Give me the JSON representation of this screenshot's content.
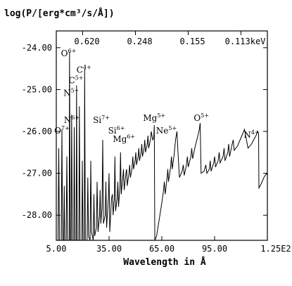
{
  "chart_data": {
    "type": "line",
    "ylabel": "log(P/[erg*cm³/s/Å])",
    "xlabel": "Wavelength in Å",
    "xlim": [
      5,
      125
    ],
    "ylim": [
      -28.6,
      -23.6
    ],
    "xticks": [
      5,
      35,
      65,
      95,
      125
    ],
    "xtick_labels": [
      "5.00",
      "35.00",
      "65.00",
      "95.00",
      "1.25E2"
    ],
    "yticks": [
      -24,
      -25,
      -26,
      -27,
      -28
    ],
    "ytick_labels": [
      "-24.00",
      "-25.00",
      "-26.00",
      "-27.00",
      "-28.00"
    ],
    "top_axis_labels": [
      {
        "label": "0.620",
        "at_x": 20
      },
      {
        "label": "0.248",
        "at_x": 50
      },
      {
        "label": "0.155",
        "at_x": 80
      },
      {
        "label": "0.113keV",
        "at_x": 110
      }
    ],
    "annotations": [
      {
        "text": "O",
        "sup": "7+",
        "x": 8.2,
        "y": -26.05
      },
      {
        "text": "O",
        "sup": "6+",
        "x": 12.0,
        "y": -24.2
      },
      {
        "text": "N",
        "sup": "5+",
        "x": 13.5,
        "y": -25.15
      },
      {
        "text": "N",
        "sup": "6+",
        "x": 13.8,
        "y": -25.8
      },
      {
        "text": "C",
        "sup": "5+",
        "x": 16.2,
        "y": -24.85
      },
      {
        "text": "C",
        "sup": "4+",
        "x": 20.7,
        "y": -24.6
      },
      {
        "text": "Si",
        "sup": "7+",
        "x": 30.6,
        "y": -25.8
      },
      {
        "text": "Si",
        "sup": "6+",
        "x": 39.2,
        "y": -26.05
      },
      {
        "text": "Mg",
        "sup": "6+",
        "x": 43.5,
        "y": -26.25
      },
      {
        "text": "Mg",
        "sup": "5+",
        "x": 60.7,
        "y": -25.75
      },
      {
        "text": "Ne",
        "sup": "5+",
        "x": 67.6,
        "y": -26.05
      },
      {
        "text": "O",
        "sup": "5+",
        "x": 87.5,
        "y": -25.75
      },
      {
        "text": "N",
        "sup": "4+",
        "x": 116.0,
        "y": -26.15
      }
    ],
    "series": [
      {
        "points": [
          [
            5.0,
            -28.6
          ],
          [
            6.0,
            -28.6
          ],
          [
            6.4,
            -26.4
          ],
          [
            6.8,
            -28.6
          ],
          [
            7.8,
            -28.6
          ],
          [
            8.2,
            -25.95
          ],
          [
            8.6,
            -28.6
          ],
          [
            9.2,
            -28.6
          ],
          [
            9.5,
            -27.3
          ],
          [
            9.8,
            -28.6
          ],
          [
            10.6,
            -28.6
          ],
          [
            11.0,
            -26.6
          ],
          [
            11.4,
            -28.6
          ],
          [
            12.3,
            -28.6
          ],
          [
            12.5,
            -24.1
          ],
          [
            12.9,
            -28.6
          ],
          [
            13.4,
            -28.6
          ],
          [
            13.7,
            -25.6
          ],
          [
            14.1,
            -28.6
          ],
          [
            14.9,
            -28.6
          ],
          [
            15.2,
            -25.9
          ],
          [
            15.6,
            -28.6
          ],
          [
            16.3,
            -28.6
          ],
          [
            16.5,
            -24.9
          ],
          [
            16.9,
            -28.6
          ],
          [
            17.8,
            -28.6
          ],
          [
            18.1,
            -25.4
          ],
          [
            18.5,
            -28.6
          ],
          [
            19.5,
            -28.6
          ],
          [
            19.8,
            -26.7
          ],
          [
            20.2,
            -28.6
          ],
          [
            20.9,
            -28.6
          ],
          [
            21.1,
            -24.5
          ],
          [
            21.5,
            -28.6
          ],
          [
            22.5,
            -28.6
          ],
          [
            22.9,
            -27.1
          ],
          [
            23.3,
            -28.5
          ],
          [
            24.2,
            -28.6
          ],
          [
            24.6,
            -26.7
          ],
          [
            25.0,
            -28.4
          ],
          [
            26.0,
            -28.6
          ],
          [
            26.4,
            -27.5
          ],
          [
            26.8,
            -28.5
          ],
          [
            27.8,
            -28.3
          ],
          [
            28.2,
            -27.2
          ],
          [
            28.7,
            -28.4
          ],
          [
            29.6,
            -28.0
          ],
          [
            29.9,
            -27.4
          ],
          [
            30.3,
            -28.2
          ],
          [
            31.0,
            -27.8
          ],
          [
            31.4,
            -26.2
          ],
          [
            31.8,
            -28.2
          ],
          [
            32.8,
            -28.0
          ],
          [
            33.2,
            -27.2
          ],
          [
            33.6,
            -28.3
          ],
          [
            34.6,
            -27.6
          ],
          [
            35.0,
            -27.0
          ],
          [
            35.4,
            -28.4
          ],
          [
            36.4,
            -27.6
          ],
          [
            36.9,
            -27.5
          ],
          [
            37.3,
            -28.0
          ],
          [
            38.0,
            -27.6
          ],
          [
            38.3,
            -26.6
          ],
          [
            38.7,
            -27.9
          ],
          [
            39.6,
            -27.6
          ],
          [
            40.0,
            -27.2
          ],
          [
            40.4,
            -27.8
          ],
          [
            41.2,
            -27.3
          ],
          [
            41.5,
            -26.5
          ],
          [
            41.9,
            -27.5
          ],
          [
            42.8,
            -27.1
          ],
          [
            43.2,
            -26.9
          ],
          [
            43.6,
            -27.4
          ],
          [
            44.6,
            -27.0
          ],
          [
            45.0,
            -26.9
          ],
          [
            45.3,
            -27.3
          ],
          [
            46.3,
            -27.0
          ],
          [
            46.7,
            -26.8
          ],
          [
            47.1,
            -27.1
          ],
          [
            48.0,
            -26.9
          ],
          [
            48.5,
            -26.6
          ],
          [
            48.9,
            -26.9
          ],
          [
            49.8,
            -26.7
          ],
          [
            50.2,
            -26.5
          ],
          [
            50.6,
            -26.8
          ],
          [
            51.5,
            -26.6
          ],
          [
            51.9,
            -26.4
          ],
          [
            52.3,
            -26.7
          ],
          [
            53.2,
            -26.5
          ],
          [
            53.6,
            -26.3
          ],
          [
            54.0,
            -26.6
          ],
          [
            54.9,
            -26.4
          ],
          [
            55.3,
            -26.2
          ],
          [
            55.7,
            -26.5
          ],
          [
            56.7,
            -26.3
          ],
          [
            57.1,
            -26.1
          ],
          [
            57.5,
            -26.4
          ],
          [
            58.5,
            -26.2
          ],
          [
            59.0,
            -26.0
          ],
          [
            59.8,
            -26.2
          ],
          [
            60.4,
            -26.15
          ],
          [
            60.7,
            -25.85
          ],
          [
            61.0,
            -28.6
          ],
          [
            62.0,
            -28.5
          ],
          [
            63.5,
            -28.1
          ],
          [
            65.0,
            -27.7
          ],
          [
            66.0,
            -27.4
          ],
          [
            66.4,
            -27.2
          ],
          [
            66.9,
            -27.5
          ],
          [
            68.0,
            -27.1
          ],
          [
            68.4,
            -26.9
          ],
          [
            68.8,
            -27.2
          ],
          [
            70.0,
            -26.85
          ],
          [
            70.5,
            -26.6
          ],
          [
            70.9,
            -26.9
          ],
          [
            72.0,
            -26.55
          ],
          [
            72.8,
            -26.2
          ],
          [
            73.6,
            -26.0
          ],
          [
            74.1,
            -26.45
          ],
          [
            75.0,
            -27.1
          ],
          [
            76.5,
            -26.95
          ],
          [
            77.2,
            -26.8
          ],
          [
            77.7,
            -27.05
          ],
          [
            79.0,
            -26.8
          ],
          [
            79.5,
            -26.6
          ],
          [
            80.0,
            -26.85
          ],
          [
            81.5,
            -26.6
          ],
          [
            82.0,
            -26.4
          ],
          [
            82.5,
            -26.65
          ],
          [
            84.0,
            -26.35
          ],
          [
            85.5,
            -26.1
          ],
          [
            86.3,
            -25.95
          ],
          [
            86.8,
            -25.8
          ],
          [
            87.3,
            -27.0
          ],
          [
            89.0,
            -26.95
          ],
          [
            90.0,
            -26.8
          ],
          [
            90.6,
            -27.0
          ],
          [
            92.0,
            -26.9
          ],
          [
            92.5,
            -26.7
          ],
          [
            93.0,
            -26.95
          ],
          [
            94.5,
            -26.75
          ],
          [
            95.0,
            -26.6
          ],
          [
            95.5,
            -26.85
          ],
          [
            97.0,
            -26.7
          ],
          [
            97.6,
            -26.5
          ],
          [
            98.1,
            -26.75
          ],
          [
            99.8,
            -26.6
          ],
          [
            100.4,
            -26.4
          ],
          [
            100.9,
            -26.7
          ],
          [
            102.5,
            -26.5
          ],
          [
            103.0,
            -26.3
          ],
          [
            103.5,
            -26.6
          ],
          [
            105.0,
            -26.3
          ],
          [
            105.6,
            -26.2
          ],
          [
            106.1,
            -26.45
          ],
          [
            108.0,
            -26.35
          ],
          [
            110.0,
            -26.15
          ],
          [
            112.0,
            -25.95
          ],
          [
            114.0,
            -26.4
          ],
          [
            116.0,
            -26.3
          ],
          [
            118.5,
            -26.1
          ],
          [
            119.5,
            -26.0
          ],
          [
            120.0,
            -26.05
          ],
          [
            120.2,
            -27.35
          ],
          [
            121.5,
            -27.25
          ],
          [
            123.0,
            -27.1
          ],
          [
            124.5,
            -27.0
          ],
          [
            125.0,
            -27.05
          ]
        ]
      }
    ]
  }
}
